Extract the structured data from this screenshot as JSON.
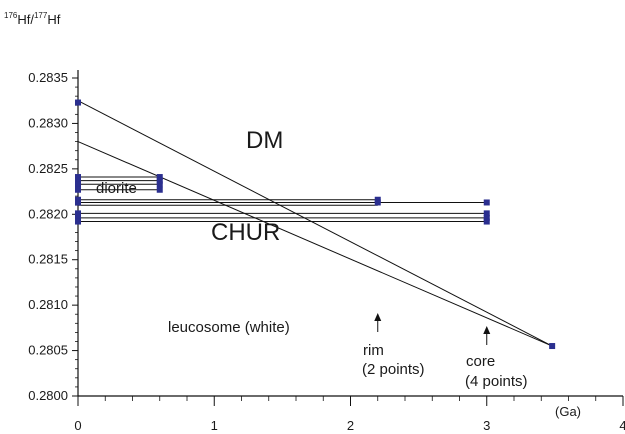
{
  "chart_data": {
    "type": "scatter",
    "ylabel": {
      "pre": "176",
      "a": "Hf/",
      "sup": "177",
      "b": "Hf"
    },
    "xlabel": "(Ga)",
    "xlim": [
      0,
      4
    ],
    "ylim": [
      0.28,
      0.2835
    ],
    "x_ticks": [
      "0",
      "1",
      "2",
      "3",
      "4"
    ],
    "y_ticks": [
      "0.2800",
      "0.2805",
      "0.2810",
      "0.2815",
      "0.2820",
      "0.2825",
      "0.2830",
      "0.2835"
    ],
    "grid": false,
    "reference_lines": [
      {
        "label": "DM",
        "x": [
          0,
          3.48
        ],
        "y": [
          0.28325,
          0.28055
        ]
      },
      {
        "label": "CHUR",
        "x": [
          0,
          3.48
        ],
        "y": [
          0.2828,
          0.28055
        ]
      }
    ],
    "groups": [
      {
        "label": "diorite",
        "points": [
          [
            0,
            0.28241
          ],
          [
            0.6,
            0.28241
          ],
          [
            0,
            0.28237
          ],
          [
            0.6,
            0.28237
          ],
          [
            0,
            0.28233
          ],
          [
            0.6,
            0.28233
          ],
          [
            0,
            0.28227
          ],
          [
            0.6,
            0.28227
          ]
        ]
      },
      {
        "label": "rim",
        "points": [
          [
            0,
            0.28216
          ],
          [
            2.2,
            0.28216
          ],
          [
            0,
            0.28213
          ],
          [
            2.2,
            0.28213
          ]
        ]
      },
      {
        "label": "core",
        "points": [
          [
            0,
            0.28213
          ],
          [
            3.0,
            0.28213
          ],
          [
            0,
            0.28201
          ],
          [
            3.0,
            0.28201
          ],
          [
            0,
            0.28196
          ],
          [
            3.0,
            0.28196
          ],
          [
            0,
            0.28192
          ],
          [
            3.0,
            0.28192
          ]
        ]
      },
      {
        "label": "",
        "points": [
          [
            0,
            0.28323
          ],
          [
            3.48,
            0.28055
          ]
        ]
      }
    ],
    "labels": {
      "dm": "DM",
      "chur": "CHUR",
      "diorite": "diorite",
      "leucosome": "leucosome (white)",
      "rim_1": "rim",
      "rim_2": "(2 points)",
      "core_1": "core",
      "core_2": "(4 points)"
    },
    "colors": {
      "marker": "#2b2f8f",
      "line": "#111111",
      "axis": "#111111"
    }
  }
}
